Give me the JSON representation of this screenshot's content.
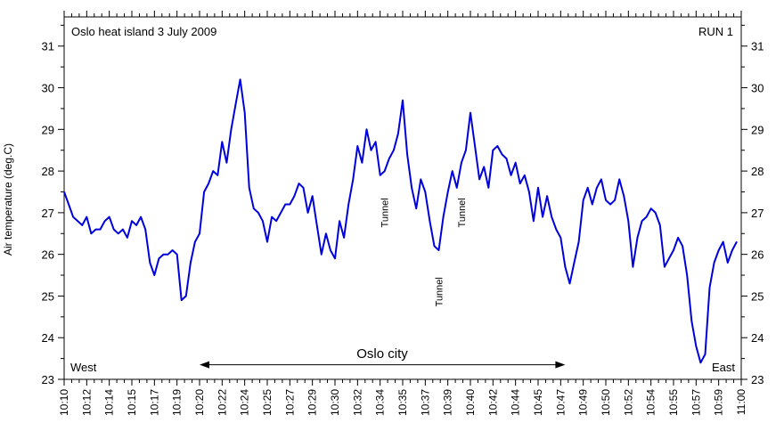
{
  "chart_data": {
    "type": "line",
    "title": "Oslo heat island 3 July 2009",
    "run_label": "RUN 1",
    "ylabel": "Air temperature (deg.C)",
    "xlabel": "",
    "ylim": [
      23,
      31.7
    ],
    "xlim": [
      "10:10",
      "11:00"
    ],
    "grid": false,
    "y_ticks": [
      23,
      24,
      25,
      26,
      27,
      28,
      29,
      30,
      31
    ],
    "x_tick_labels": [
      "10:10",
      "10:12",
      "10:14",
      "10:15",
      "10:17",
      "10:19",
      "10:20",
      "10:22",
      "10:24",
      "10:25",
      "10:27",
      "10:29",
      "10:30",
      "10:32",
      "10:34",
      "10:35",
      "10:37",
      "10:39",
      "10:40",
      "10:42",
      "10:44",
      "10:45",
      "10:47",
      "10:49",
      "10:50",
      "10:52",
      "10:54",
      "10:55",
      "10:57",
      "10:59",
      "11:00"
    ],
    "line_color": "#0000dd",
    "series": [
      {
        "name": "",
        "points": [
          [
            "10:10:00",
            27.5
          ],
          [
            "10:10:20",
            27.2
          ],
          [
            "10:10:40",
            26.9
          ],
          [
            "10:11:00",
            26.8
          ],
          [
            "10:11:20",
            26.7
          ],
          [
            "10:11:40",
            26.9
          ],
          [
            "10:12:00",
            26.5
          ],
          [
            "10:12:20",
            26.6
          ],
          [
            "10:12:40",
            26.6
          ],
          [
            "10:13:00",
            26.8
          ],
          [
            "10:13:20",
            26.9
          ],
          [
            "10:13:40",
            26.6
          ],
          [
            "10:14:00",
            26.5
          ],
          [
            "10:14:20",
            26.6
          ],
          [
            "10:14:40",
            26.4
          ],
          [
            "10:15:00",
            26.8
          ],
          [
            "10:15:20",
            26.7
          ],
          [
            "10:15:40",
            26.9
          ],
          [
            "10:16:00",
            26.6
          ],
          [
            "10:16:20",
            25.8
          ],
          [
            "10:16:40",
            25.5
          ],
          [
            "10:17:00",
            25.9
          ],
          [
            "10:17:20",
            26.0
          ],
          [
            "10:17:40",
            26.0
          ],
          [
            "10:18:00",
            26.1
          ],
          [
            "10:18:20",
            26.0
          ],
          [
            "10:18:40",
            24.9
          ],
          [
            "10:19:00",
            25.0
          ],
          [
            "10:19:20",
            25.8
          ],
          [
            "10:19:40",
            26.3
          ],
          [
            "10:20:00",
            26.5
          ],
          [
            "10:20:20",
            27.5
          ],
          [
            "10:20:40",
            27.7
          ],
          [
            "10:21:00",
            28.0
          ],
          [
            "10:21:20",
            27.9
          ],
          [
            "10:21:40",
            28.7
          ],
          [
            "10:22:00",
            28.2
          ],
          [
            "10:22:20",
            29.0
          ],
          [
            "10:22:40",
            29.6
          ],
          [
            "10:23:00",
            30.2
          ],
          [
            "10:23:20",
            29.4
          ],
          [
            "10:23:40",
            27.6
          ],
          [
            "10:24:00",
            27.1
          ],
          [
            "10:24:20",
            27.0
          ],
          [
            "10:24:40",
            26.8
          ],
          [
            "10:25:00",
            26.3
          ],
          [
            "10:25:20",
            26.9
          ],
          [
            "10:25:40",
            26.8
          ],
          [
            "10:26:00",
            27.0
          ],
          [
            "10:26:20",
            27.2
          ],
          [
            "10:26:40",
            27.2
          ],
          [
            "10:27:00",
            27.4
          ],
          [
            "10:27:20",
            27.7
          ],
          [
            "10:27:40",
            27.6
          ],
          [
            "10:28:00",
            27.0
          ],
          [
            "10:28:20",
            27.4
          ],
          [
            "10:28:40",
            26.7
          ],
          [
            "10:29:00",
            26.0
          ],
          [
            "10:29:20",
            26.5
          ],
          [
            "10:29:40",
            26.1
          ],
          [
            "10:30:00",
            25.9
          ],
          [
            "10:30:20",
            26.8
          ],
          [
            "10:30:40",
            26.4
          ],
          [
            "10:31:00",
            27.2
          ],
          [
            "10:31:20",
            27.8
          ],
          [
            "10:31:40",
            28.6
          ],
          [
            "10:32:00",
            28.2
          ],
          [
            "10:32:20",
            29.0
          ],
          [
            "10:32:40",
            28.5
          ],
          [
            "10:33:00",
            28.7
          ],
          [
            "10:33:20",
            27.9
          ],
          [
            "10:33:40",
            28.0
          ],
          [
            "10:34:00",
            28.3
          ],
          [
            "10:34:20",
            28.5
          ],
          [
            "10:34:40",
            28.9
          ],
          [
            "10:35:00",
            29.7
          ],
          [
            "10:35:20",
            28.4
          ],
          [
            "10:35:40",
            27.6
          ],
          [
            "10:36:00",
            27.1
          ],
          [
            "10:36:20",
            27.8
          ],
          [
            "10:36:40",
            27.5
          ],
          [
            "10:37:00",
            26.8
          ],
          [
            "10:37:20",
            26.2
          ],
          [
            "10:37:40",
            26.1
          ],
          [
            "10:38:00",
            26.9
          ],
          [
            "10:38:20",
            27.5
          ],
          [
            "10:38:40",
            28.0
          ],
          [
            "10:39:00",
            27.6
          ],
          [
            "10:39:20",
            28.2
          ],
          [
            "10:39:40",
            28.5
          ],
          [
            "10:40:00",
            29.4
          ],
          [
            "10:40:20",
            28.6
          ],
          [
            "10:40:40",
            27.8
          ],
          [
            "10:41:00",
            28.1
          ],
          [
            "10:41:20",
            27.6
          ],
          [
            "10:41:40",
            28.5
          ],
          [
            "10:42:00",
            28.6
          ],
          [
            "10:42:20",
            28.4
          ],
          [
            "10:42:40",
            28.3
          ],
          [
            "10:43:00",
            27.9
          ],
          [
            "10:43:20",
            28.2
          ],
          [
            "10:43:40",
            27.7
          ],
          [
            "10:44:00",
            27.9
          ],
          [
            "10:44:20",
            27.5
          ],
          [
            "10:44:40",
            26.8
          ],
          [
            "10:45:00",
            27.6
          ],
          [
            "10:45:20",
            26.9
          ],
          [
            "10:45:40",
            27.4
          ],
          [
            "10:46:00",
            26.9
          ],
          [
            "10:46:20",
            26.6
          ],
          [
            "10:46:40",
            26.4
          ],
          [
            "10:47:00",
            25.7
          ],
          [
            "10:47:20",
            25.3
          ],
          [
            "10:47:40",
            25.8
          ],
          [
            "10:48:00",
            26.3
          ],
          [
            "10:48:20",
            27.3
          ],
          [
            "10:48:40",
            27.6
          ],
          [
            "10:49:00",
            27.2
          ],
          [
            "10:49:20",
            27.6
          ],
          [
            "10:49:40",
            27.8
          ],
          [
            "10:50:00",
            27.3
          ],
          [
            "10:50:20",
            27.2
          ],
          [
            "10:50:40",
            27.3
          ],
          [
            "10:51:00",
            27.8
          ],
          [
            "10:51:20",
            27.4
          ],
          [
            "10:51:40",
            26.8
          ],
          [
            "10:52:00",
            25.7
          ],
          [
            "10:52:20",
            26.4
          ],
          [
            "10:52:40",
            26.8
          ],
          [
            "10:53:00",
            26.9
          ],
          [
            "10:53:20",
            27.1
          ],
          [
            "10:53:40",
            27.0
          ],
          [
            "10:54:00",
            26.7
          ],
          [
            "10:54:20",
            25.7
          ],
          [
            "10:54:40",
            25.9
          ],
          [
            "10:55:00",
            26.1
          ],
          [
            "10:55:20",
            26.4
          ],
          [
            "10:55:40",
            26.2
          ],
          [
            "10:56:00",
            25.5
          ],
          [
            "10:56:20",
            24.4
          ],
          [
            "10:56:40",
            23.8
          ],
          [
            "10:57:00",
            23.4
          ],
          [
            "10:57:20",
            23.6
          ],
          [
            "10:57:40",
            25.2
          ],
          [
            "10:58:00",
            25.8
          ],
          [
            "10:58:20",
            26.1
          ],
          [
            "10:58:40",
            26.3
          ],
          [
            "10:59:00",
            25.8
          ],
          [
            "10:59:20",
            26.1
          ],
          [
            "10:59:40",
            26.3
          ]
        ]
      }
    ],
    "annotations": [
      {
        "text": "Tunnel",
        "x": "10:33:40",
        "y": 27.0,
        "rotate": -90
      },
      {
        "text": "Tunnel",
        "x": "10:37:40",
        "y": 25.1,
        "rotate": -90
      },
      {
        "text": "Tunnel",
        "x": "10:39:20",
        "y": 27.0,
        "rotate": -90
      }
    ],
    "corner_labels": {
      "west": "West",
      "east": "East"
    },
    "city_span": {
      "label": "Oslo city",
      "from": "10:20:00",
      "to": "10:47:00",
      "y": 23.35
    }
  }
}
